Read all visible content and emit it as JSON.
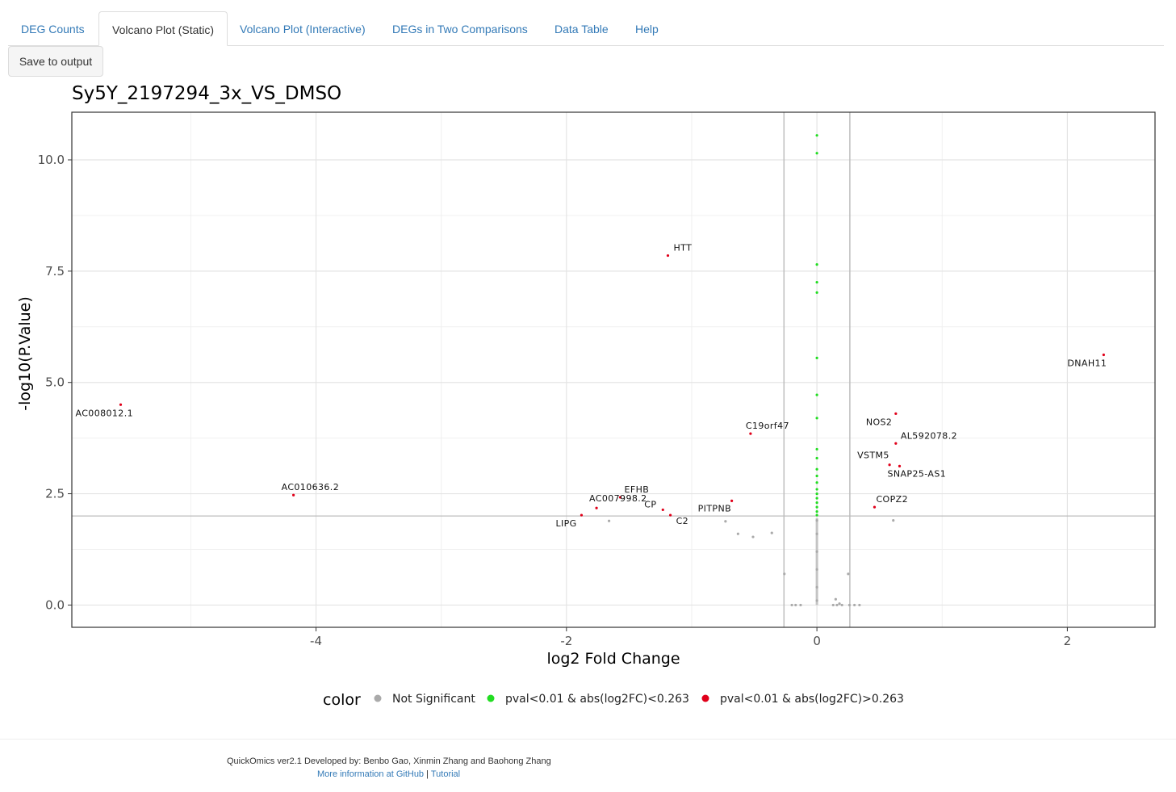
{
  "tabs": [
    {
      "label": "DEG Counts",
      "active": false
    },
    {
      "label": "Volcano Plot (Static)",
      "active": true
    },
    {
      "label": "Volcano Plot (Interactive)",
      "active": false
    },
    {
      "label": "DEGs in Two Comparisons",
      "active": false
    },
    {
      "label": "Data Table",
      "active": false
    },
    {
      "label": "Help",
      "active": false
    }
  ],
  "toolbar": {
    "save_label": "Save to output"
  },
  "chart_data": {
    "type": "scatter",
    "title": "Sy5Y_2197294_3x_VS_DMSO",
    "xlabel": "log2 Fold Change",
    "ylabel": "-log10(P.Value)",
    "xlim": [
      -5.95,
      2.7
    ],
    "ylim": [
      -0.5,
      11.07
    ],
    "x_ticks": [
      -4,
      -2,
      0,
      2
    ],
    "x_tick_labels": [
      "-4",
      "-2",
      "0",
      "2"
    ],
    "y_ticks": [
      0,
      2.5,
      5,
      7.5,
      10
    ],
    "y_tick_labels": [
      "0.0",
      "2.5",
      "5.0",
      "7.5",
      "10.0"
    ],
    "grid": true,
    "threshold_lines": {
      "x": [
        -0.263,
        0.263
      ],
      "y": 2
    },
    "legend": {
      "title": "color",
      "placement": "bottom",
      "entries": [
        {
          "label": "Not Significant",
          "color": "#aaaaaa"
        },
        {
          "label": "pval<0.01 & abs(log2FC)<0.263",
          "color": "#22dd22"
        },
        {
          "label": "pval<0.01 & abs(log2FC)>0.263",
          "color": "#e0001a"
        }
      ]
    },
    "series": [
      {
        "name": "Not Significant",
        "color": "#aaaaaa",
        "points": [
          [
            -1.66,
            1.89
          ],
          [
            -0.73,
            1.88
          ],
          [
            -0.63,
            1.6
          ],
          [
            -0.51,
            1.53
          ],
          [
            -0.36,
            1.62
          ],
          [
            -0.26,
            0.7
          ],
          [
            -0.2,
            0.0
          ],
          [
            -0.17,
            0.0
          ],
          [
            -0.13,
            0.0
          ],
          [
            0.15,
            0.13
          ],
          [
            0.13,
            0.0
          ],
          [
            0.16,
            0.0
          ],
          [
            0.18,
            0.03
          ],
          [
            0.2,
            0.0
          ],
          [
            0.25,
            0.7
          ],
          [
            0.26,
            0.0
          ],
          [
            0.3,
            0.0
          ],
          [
            0.34,
            0.0
          ],
          [
            0.61,
            1.9
          ],
          [
            0.0,
            0.1
          ],
          [
            0.0,
            0.4
          ],
          [
            0.0,
            0.8
          ],
          [
            0.0,
            1.2
          ],
          [
            0.0,
            1.6
          ],
          [
            0.0,
            1.9
          ]
        ]
      },
      {
        "name": "pval<0.01 & abs(log2FC)<0.263",
        "color": "#22dd22",
        "points": [
          [
            0.0,
            10.55
          ],
          [
            0.0,
            10.15
          ],
          [
            0.0,
            7.65
          ],
          [
            0.0,
            7.25
          ],
          [
            0.0,
            7.02
          ],
          [
            0.0,
            5.55
          ],
          [
            0.0,
            4.72
          ],
          [
            0.0,
            4.2
          ],
          [
            0.0,
            3.5
          ],
          [
            0.0,
            3.3
          ],
          [
            0.0,
            3.05
          ],
          [
            0.0,
            2.9
          ],
          [
            0.0,
            2.75
          ],
          [
            0.0,
            2.6
          ],
          [
            0.0,
            2.5
          ],
          [
            0.0,
            2.4
          ],
          [
            0.0,
            2.3
          ],
          [
            0.0,
            2.2
          ],
          [
            0.0,
            2.1
          ],
          [
            0.0,
            2.02
          ]
        ]
      },
      {
        "name": "pval<0.01 & abs(log2FC)>0.263",
        "color": "#e0001a",
        "points": [
          {
            "x": -5.56,
            "y": 4.5,
            "label": "AC008012.1"
          },
          {
            "x": -4.18,
            "y": 2.47,
            "label": "AC010636.2"
          },
          {
            "x": -1.19,
            "y": 7.85,
            "label": "HTT"
          },
          {
            "x": -1.57,
            "y": 2.42,
            "label": "EFHB"
          },
          {
            "x": -1.88,
            "y": 2.02,
            "label": "LIPG"
          },
          {
            "x": -1.76,
            "y": 2.18,
            "label": "AC007998.2"
          },
          {
            "x": -1.23,
            "y": 2.14,
            "label": "CP"
          },
          {
            "x": -1.17,
            "y": 2.02,
            "label": "C2"
          },
          {
            "x": -0.68,
            "y": 2.34,
            "label": "PITPNB"
          },
          {
            "x": -0.53,
            "y": 3.85,
            "label": "C19orf47"
          },
          {
            "x": 0.63,
            "y": 4.3,
            "label": "NOS2"
          },
          {
            "x": 0.63,
            "y": 3.63,
            "label": "AL592078.2"
          },
          {
            "x": 0.58,
            "y": 3.15,
            "label": "VSTM5"
          },
          {
            "x": 0.66,
            "y": 3.12,
            "label": "SNAP25-AS1"
          },
          {
            "x": 0.46,
            "y": 2.2,
            "label": "COPZ2"
          },
          {
            "x": 2.29,
            "y": 5.62,
            "label": "DNAH11"
          }
        ]
      }
    ]
  },
  "footer": {
    "credits": "QuickOmics ver2.1 Developed by: Benbo Gao, Xinmin Zhang and Baohong Zhang",
    "github_link": "More information at GitHub",
    "separator": "|",
    "tutorial_link": "Tutorial"
  }
}
